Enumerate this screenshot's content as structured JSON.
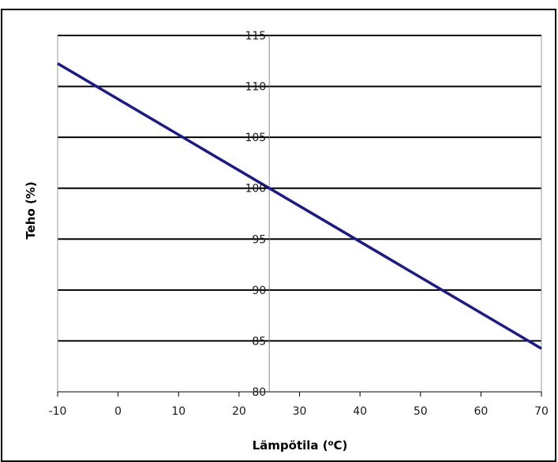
{
  "chart_data": {
    "type": "line",
    "title": "",
    "xlabel": "Lämpötila (",
    "xlabel_sup": "o",
    "xlabel_tail": "C)",
    "ylabel": "Teho (%)",
    "xlim": [
      -10,
      70
    ],
    "ylim": [
      80,
      115
    ],
    "x_ticks": [
      -10,
      0,
      10,
      20,
      30,
      40,
      50,
      60,
      70
    ],
    "y_ticks": [
      80,
      85,
      90,
      95,
      100,
      105,
      110,
      115
    ],
    "grid": {
      "horizontal": true,
      "vertical": false
    },
    "y_axis_crossing_x": 25,
    "legend": "none",
    "series": [
      {
        "x": [
          -10,
          70
        ],
        "y": [
          112.25,
          84.25
        ],
        "color": "#1a1a8c"
      }
    ]
  }
}
